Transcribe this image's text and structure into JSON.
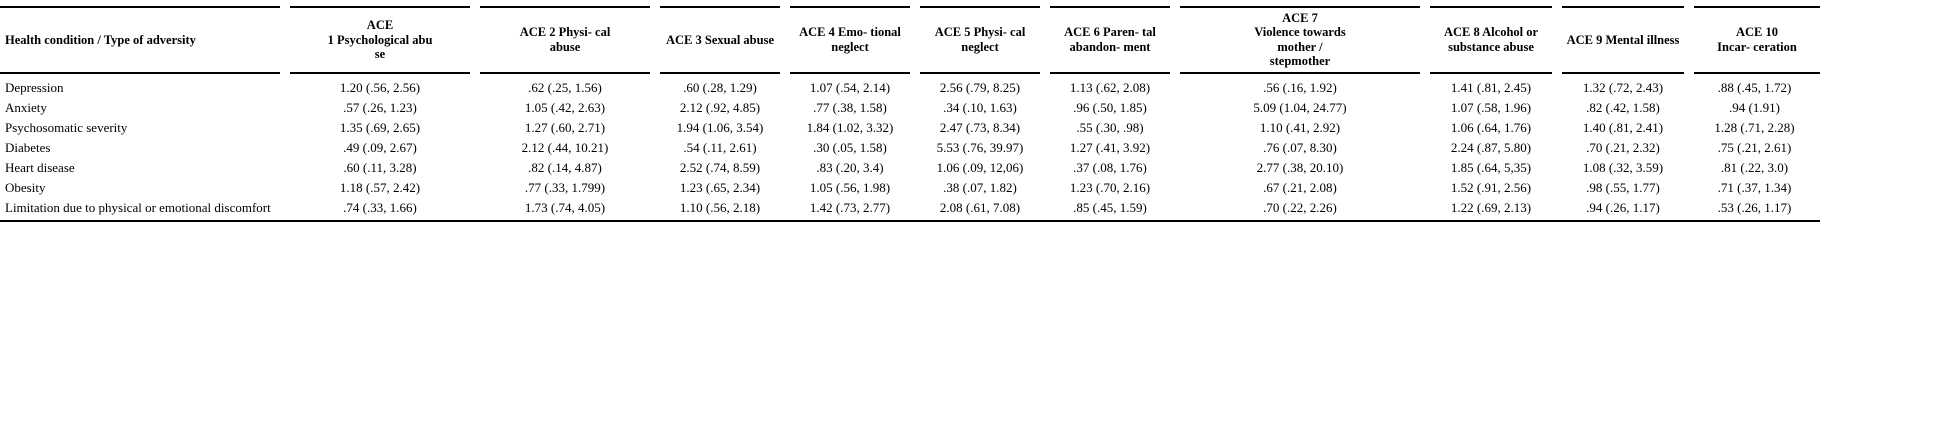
{
  "table": {
    "header": {
      "col0": "Health condition / Type of adversity",
      "cols": [
        "ACE\n1 Psychological abu\nse",
        "ACE 2 Physi- cal\nabuse",
        "ACE 3 Sexual abuse",
        "ACE 4 Emo- tional\nneglect",
        "ACE 5 Physi- cal\nneglect",
        "ACE 6 Paren- tal\nabandon- ment",
        "ACE 7\nViolence towards\nmother /\nstepmother",
        "ACE 8 Alcohol or\nsubstance abuse",
        "ACE 9 Mental illness",
        "ACE 10\nIncar- ceration"
      ]
    },
    "rows": [
      {
        "label": "Depression",
        "values": [
          "1.20 (.56, 2.56)",
          ".62 (.25, 1.56)",
          ".60 (.28, 1.29)",
          "1.07 (.54, 2.14)",
          "2.56 (.79, 8.25)",
          "1.13 (.62, 2.08)",
          ".56 (.16, 1.92)",
          "1.41 (.81, 2.45)",
          "1.32 (.72, 2.43)",
          ".88 (.45, 1.72)"
        ]
      },
      {
        "label": "Anxiety",
        "values": [
          ".57 (.26, 1.23)",
          "1.05 (.42, 2.63)",
          "2.12 (.92, 4.85)",
          ".77 (.38, 1.58)",
          ".34 (.10, 1.63)",
          ".96 (.50, 1.85)",
          "5.09 (1.04, 24.77)",
          "1.07 (.58, 1.96)",
          ".82 (.42, 1.58)",
          ".94 (1.91)"
        ]
      },
      {
        "label": "Psychosomatic severity",
        "values": [
          "1.35 (.69, 2.65)",
          "1.27 (.60, 2.71)",
          "1.94 (1.06, 3.54)",
          "1.84 (1.02, 3.32)",
          "2.47 (.73, 8.34)",
          ".55 (.30, .98)",
          "1.10 (.41, 2.92)",
          "1.06 (.64, 1.76)",
          "1.40 (.81, 2.41)",
          "1.28 (.71, 2.28)"
        ]
      },
      {
        "label": "Diabetes",
        "values": [
          ".49 (.09, 2.67)",
          "2.12 (.44, 10.21)",
          ".54 (.11, 2.61)",
          ".30 (.05, 1.58)",
          "5.53 (.76, 39.97)",
          "1.27 (.41, 3.92)",
          ".76 (.07, 8.30)",
          "2.24 (.87, 5.80)",
          ".70 (.21, 2.32)",
          ".75 (.21, 2.61)"
        ]
      },
      {
        "label": "Heart disease",
        "values": [
          ".60 (.11, 3.28)",
          ".82 (.14, 4.87)",
          "2.52 (.74, 8.59)",
          ".83 (.20, 3.4)",
          "1.06 (.09, 12,06)",
          ".37 (.08, 1.76)",
          "2.77 (.38, 20.10)",
          "1.85 (.64, 5,35)",
          "1.08 (.32, 3.59)",
          ".81 (.22, 3.0)"
        ]
      },
      {
        "label": "Obesity",
        "values": [
          "1.18 (.57, 2.42)",
          ".77 (.33, 1.799)",
          "1.23 (.65, 2.34)",
          "1.05 (.56, 1.98)",
          ".38 (.07, 1.82)",
          "1.23 (.70, 2.16)",
          ".67 (.21, 2.08)",
          "1.52 (.91, 2.56)",
          ".98 (.55, 1.77)",
          ".71 (.37, 1.34)"
        ]
      },
      {
        "label": "Limitation due to physical or emotional discomfort",
        "values": [
          ".74 (.33, 1.66)",
          "1.73 (.74, 4.05)",
          "1.10 (.56, 2.18)",
          "1.42 (.73, 2.77)",
          "2.08 (.61, 7.08)",
          ".85 (.45, 1.59)",
          ".70 (.22, 2.26)",
          "1.22 (.69, 2.13)",
          ".94 (.26, 1.17)",
          ".53 (.26, 1.17)"
        ]
      }
    ]
  },
  "chart_data": {
    "type": "table",
    "columns": [
      "Health condition / Type of adversity",
      "ACE 1 Psychological abuse",
      "ACE 2 Physi- cal abuse",
      "ACE 3 Sexual abuse",
      "ACE 4 Emo- tional neglect",
      "ACE 5 Physi- cal neglect",
      "ACE 6 Paren- tal abandon- ment",
      "ACE 7 Violence towards mother / stepmother",
      "ACE 8 Alcohol or substance abuse",
      "ACE 9 Mental illness",
      "ACE 10 Incar- ceration"
    ],
    "rows": [
      [
        "Depression",
        "1.20 (.56, 2.56)",
        ".62 (.25, 1.56)",
        ".60 (.28, 1.29)",
        "1.07 (.54, 2.14)",
        "2.56 (.79, 8.25)",
        "1.13 (.62, 2.08)",
        ".56 (.16, 1.92)",
        "1.41 (.81, 2.45)",
        "1.32 (.72, 2.43)",
        ".88 (.45, 1.72)"
      ],
      [
        "Anxiety",
        ".57 (.26, 1.23)",
        "1.05 (.42, 2.63)",
        "2.12 (.92, 4.85)",
        ".77 (.38, 1.58)",
        ".34 (.10, 1.63)",
        ".96 (.50, 1.85)",
        "5.09 (1.04, 24.77)",
        "1.07 (.58, 1.96)",
        ".82 (.42, 1.58)",
        ".94 (1.91)"
      ],
      [
        "Psychosomatic severity",
        "1.35 (.69, 2.65)",
        "1.27 (.60, 2.71)",
        "1.94 (1.06, 3.54)",
        "1.84 (1.02, 3.32)",
        "2.47 (.73, 8.34)",
        ".55 (.30, .98)",
        "1.10 (.41, 2.92)",
        "1.06 (.64, 1.76)",
        "1.40 (.81, 2.41)",
        "1.28 (.71, 2.28)"
      ],
      [
        "Diabetes",
        ".49 (.09, 2.67)",
        "2.12 (.44, 10.21)",
        ".54 (.11, 2.61)",
        ".30 (.05, 1.58)",
        "5.53 (.76, 39.97)",
        "1.27 (.41, 3.92)",
        ".76 (.07, 8.30)",
        "2.24 (.87, 5.80)",
        ".70 (.21, 2.32)",
        ".75 (.21, 2.61)"
      ],
      [
        "Heart disease",
        ".60 (.11, 3.28)",
        ".82 (.14, 4.87)",
        "2.52 (.74, 8.59)",
        ".83 (.20, 3.4)",
        "1.06 (.09, 12,06)",
        ".37 (.08, 1.76)",
        "2.77 (.38, 20.10)",
        "1.85 (.64, 5,35)",
        "1.08 (.32, 3.59)",
        ".81 (.22, 3.0)"
      ],
      [
        "Obesity",
        "1.18 (.57, 2.42)",
        ".77 (.33, 1.799)",
        "1.23 (.65, 2.34)",
        "1.05 (.56, 1.98)",
        ".38 (.07, 1.82)",
        "1.23 (.70, 2.16)",
        ".67 (.21, 2.08)",
        "1.52 (.91, 2.56)",
        ".98 (.55, 1.77)",
        ".71 (.37, 1.34)"
      ],
      [
        "Limitation due to physical or emotional discomfort",
        ".74 (.33, 1.66)",
        "1.73 (.74, 4.05)",
        "1.10 (.56, 2.18)",
        "1.42 (.73, 2.77)",
        "2.08 (.61, 7.08)",
        ".85 (.45, 1.59)",
        ".70 (.22, 2.26)",
        "1.22 (.69, 2.13)",
        ".94 (.26, 1.17)",
        ".53 (.26, 1.17)"
      ]
    ]
  }
}
